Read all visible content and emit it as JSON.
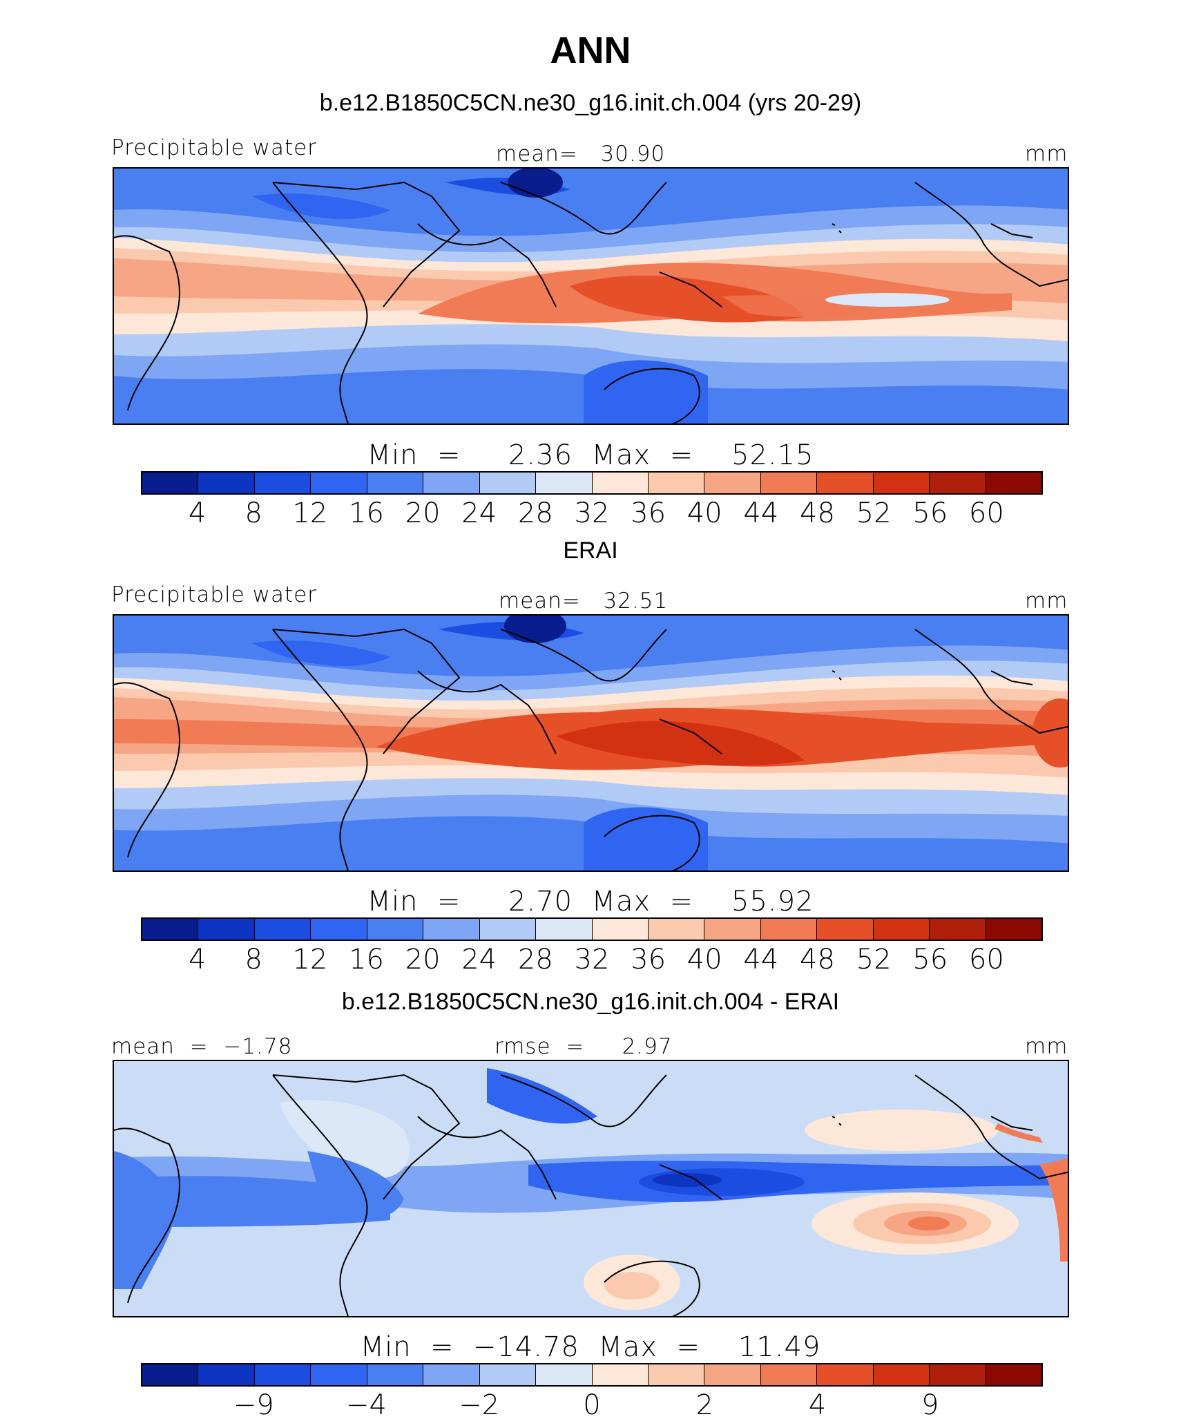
{
  "title": "ANN",
  "panels": [
    {
      "id": "model",
      "title": "b.e12.B1850C5CN.ne30_g16.init.ch.004 (yrs 20-29)",
      "left_label": "Precipitable water",
      "center_label": "mean=   30.90",
      "right_label": "mm",
      "minmax": "Min  =     2.36  Max  =    52.15",
      "levels": [
        "4",
        "8",
        "12",
        "16",
        "20",
        "24",
        "28",
        "32",
        "36",
        "40",
        "44",
        "48",
        "52",
        "56",
        "60"
      ],
      "colors": [
        "#0a1d8e",
        "#0e34c2",
        "#1b4ee0",
        "#2f65f0",
        "#4a7ff2",
        "#7ea6f4",
        "#b2cbf6",
        "#dce8f8",
        "#fde7d8",
        "#fac9ae",
        "#f6a585",
        "#f07b55",
        "#e65028",
        "#d23211",
        "#b01e0c",
        "#8b0b03"
      ]
    },
    {
      "id": "obs",
      "title": "ERAI",
      "left_label": "Precipitable water",
      "center_label": "mean=   32.51",
      "right_label": "mm",
      "minmax": "Min  =     2.70  Max  =    55.92",
      "levels": [
        "4",
        "8",
        "12",
        "16",
        "20",
        "24",
        "28",
        "32",
        "36",
        "40",
        "44",
        "48",
        "52",
        "56",
        "60"
      ],
      "colors": [
        "#0a1d8e",
        "#0e34c2",
        "#1b4ee0",
        "#2f65f0",
        "#4a7ff2",
        "#7ea6f4",
        "#b2cbf6",
        "#dce8f8",
        "#fde7d8",
        "#fac9ae",
        "#f6a585",
        "#f07b55",
        "#e65028",
        "#d23211",
        "#b01e0c",
        "#8b0b03"
      ]
    },
    {
      "id": "diff",
      "title": "b.e12.B1850C5CN.ne30_g16.init.ch.004 - ERAI",
      "left_label": "mean  =  −1.78",
      "center_label": "rmse  =     2.97",
      "right_label": "mm",
      "minmax": "Min  =  −14.78  Max  =    11.49",
      "levels": [
        "",
        "−9",
        "",
        "−4",
        "",
        "−2",
        "",
        "0",
        "",
        "2",
        "",
        "4",
        "",
        "9",
        ""
      ],
      "colors": [
        "#0a1d8e",
        "#0e34c2",
        "#1b4ee0",
        "#2f65f0",
        "#4a7ff2",
        "#7ea6f4",
        "#b2cbf6",
        "#dce8f8",
        "#fde7d8",
        "#fac9ae",
        "#f6a585",
        "#f07b55",
        "#e65028",
        "#d23211",
        "#b01e0c",
        "#8b0b03"
      ]
    }
  ],
  "chart_data": [
    {
      "type": "heatmap",
      "title": "b.e12.B1850C5CN.ne30_g16.init.ch.004 (yrs 20-29)",
      "variable": "Precipitable water",
      "units": "mm",
      "mean": 30.9,
      "min": 2.36,
      "max": 52.15,
      "contour_levels": [
        4,
        8,
        12,
        16,
        20,
        24,
        28,
        32,
        36,
        40,
        44,
        48,
        52,
        56,
        60
      ]
    },
    {
      "type": "heatmap",
      "title": "ERAI",
      "variable": "Precipitable water",
      "units": "mm",
      "mean": 32.51,
      "min": 2.7,
      "max": 55.92,
      "contour_levels": [
        4,
        8,
        12,
        16,
        20,
        24,
        28,
        32,
        36,
        40,
        44,
        48,
        52,
        56,
        60
      ]
    },
    {
      "type": "heatmap",
      "title": "b.e12.B1850C5CN.ne30_g16.init.ch.004 - ERAI",
      "units": "mm",
      "mean": -1.78,
      "rmse": 2.97,
      "min": -14.78,
      "max": 11.49,
      "contour_levels_labeled": [
        -9,
        -4,
        -2,
        0,
        2,
        4,
        9
      ]
    }
  ]
}
